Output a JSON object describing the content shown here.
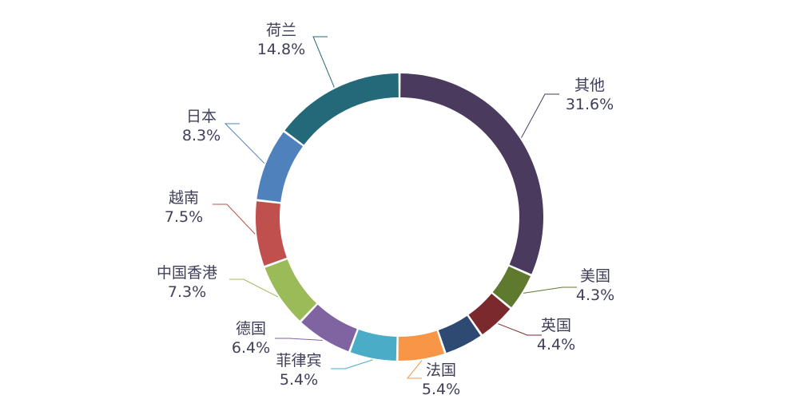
{
  "chart_data": {
    "type": "pie",
    "style": "donut",
    "title": "",
    "start": "top",
    "direction": "clockwise",
    "slices": [
      {
        "name": "其他",
        "value": 31.6,
        "label": "31.6%",
        "color": "#4a3a5e"
      },
      {
        "name": "美国",
        "value": 4.3,
        "label": "4.3%",
        "color": "#5f7a2f"
      },
      {
        "name": "英国",
        "value": 4.4,
        "label": "4.4%",
        "color": "#7a2a2c"
      },
      {
        "name": "",
        "value": 4.5,
        "label": "",
        "color": "#2e4a72"
      },
      {
        "name": "法国",
        "value": 5.4,
        "label": "5.4%",
        "color": "#f79646"
      },
      {
        "name": "菲律宾",
        "value": 5.4,
        "label": "5.4%",
        "color": "#4aacc6"
      },
      {
        "name": "德国",
        "value": 6.4,
        "label": "6.4%",
        "color": "#8064a2"
      },
      {
        "name": "中国香港",
        "value": 7.3,
        "label": "7.3%",
        "color": "#9bbb59"
      },
      {
        "name": "越南",
        "value": 7.5,
        "label": "7.5%",
        "color": "#c0504d"
      },
      {
        "name": "日本",
        "value": 8.3,
        "label": "8.3%",
        "color": "#4f81bd"
      },
      {
        "name": "荷兰",
        "value": 14.8,
        "label": "14.8%",
        "color": "#23697a"
      }
    ]
  }
}
